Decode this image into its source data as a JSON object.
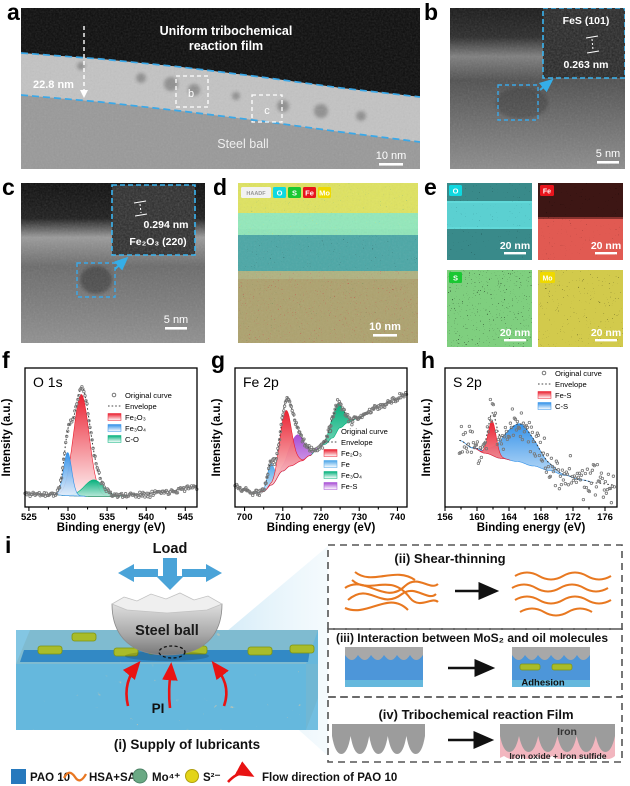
{
  "panels": {
    "a": {
      "label": "a",
      "film_line1": "Uniform tribochemical",
      "film_line2": "reaction film",
      "thickness": "22.8 nm",
      "substrate": "Steel ball",
      "box_b": "b",
      "box_c": "c",
      "scalebar": "10 nm"
    },
    "b": {
      "label": "b",
      "inset_phase": "FeS (101)",
      "inset_spacing": "0.263 nm",
      "scalebar": "5 nm"
    },
    "c": {
      "label": "c",
      "inset_spacing": "0.294 nm",
      "inset_phase": "Fe₂O₃ (220)",
      "scalebar": "5 nm"
    },
    "d": {
      "label": "d",
      "scalebar": "10 nm",
      "chips": [
        {
          "label": "HAADF",
          "color": "#f2f2f2",
          "text": "#999999"
        },
        {
          "label": "O",
          "color": "#0fd8e0",
          "text": "#ffffff"
        },
        {
          "label": "S",
          "color": "#19c832",
          "text": "#ffffff"
        },
        {
          "label": "Fe",
          "color": "#e8141c",
          "text": "#ffffff"
        },
        {
          "label": "Mo",
          "color": "#efd900",
          "text": "#ffffff"
        }
      ]
    },
    "e": {
      "label": "e",
      "maps": [
        {
          "element": "O",
          "chip_color": "#0fd8e0",
          "scalebar": "20 nm"
        },
        {
          "element": "Fe",
          "chip_color": "#e8141c",
          "scalebar": "20 nm"
        },
        {
          "element": "S",
          "chip_color": "#19c832",
          "scalebar": "20 nm"
        },
        {
          "element": "Mo",
          "chip_color": "#efd900",
          "scalebar": "20 nm"
        }
      ]
    },
    "f": {
      "label": "f"
    },
    "g": {
      "label": "g"
    },
    "h": {
      "label": "h"
    },
    "i": {
      "label": "i",
      "schematic": {
        "load": "Load",
        "ball": "Steel ball",
        "pi": "PI",
        "caption_i": "(i) Supply of lubricants",
        "caption_ii": "(ii)  Shear-thinning",
        "caption_iii": "(iii) Interaction between MoS₂ and oil molecules",
        "caption_iv": "(iv) Tribochemical reaction Film",
        "adhesion": "Adhesion",
        "iron": "Iron",
        "iron_compounds": "Iron oxide + Iron sulfide"
      },
      "legend": [
        {
          "symbol": "square",
          "color": "#2779bd",
          "label": "PAO 10"
        },
        {
          "symbol": "wave",
          "color": "#e87722",
          "label": "HSA+SA"
        },
        {
          "symbol": "circle",
          "color": "#6aa984",
          "label": "Mo⁴⁺"
        },
        {
          "symbol": "circle",
          "color": "#e3d418",
          "label": "S²⁻"
        },
        {
          "symbol": "arrow",
          "color": "#e81313",
          "label": "Flow direction of PAO 10"
        }
      ]
    }
  },
  "chart_data": [
    {
      "id": "chart-o1s",
      "panel": "f",
      "type": "area",
      "title": "O 1s",
      "xlabel": "Binding energy (eV)",
      "ylabel": "Intensity (a.u.)",
      "xlim": [
        524.5,
        546.5
      ],
      "xticks": [
        525,
        530,
        535,
        540,
        545
      ],
      "ylim": "arbitrary (a.u.)",
      "baseline": [
        [
          524.5,
          0.08
        ],
        [
          528,
          0.075
        ],
        [
          530,
          0.065
        ],
        [
          533,
          0.06
        ],
        [
          536,
          0.06
        ],
        [
          539,
          0.075
        ],
        [
          542,
          0.095
        ],
        [
          546.5,
          0.135
        ]
      ],
      "peaks": [
        {
          "name": "Fe₂O₃",
          "color": "#ea1c2c",
          "center": 531.7,
          "sigma": 1.0,
          "amp": 0.8
        },
        {
          "name": "C-O",
          "color": "#00b07a",
          "center": 533.3,
          "sigma": 1.2,
          "amp": 0.13
        },
        {
          "name": "Fe₃O₄",
          "color": "#2f8fe8",
          "center": 529.95,
          "sigma": 0.52,
          "amp": 0.34
        }
      ],
      "legend_pos": [
        108,
        50
      ],
      "legend": [
        {
          "label": "Original curve",
          "type": "scatter",
          "color": "#666666"
        },
        {
          "label": "Envelope",
          "type": "envelope",
          "color": "#444444"
        },
        {
          "label": "Fe₂O₃",
          "type": "fill",
          "color": "#ea1c2c"
        },
        {
          "label": "Fe₃O₄",
          "type": "fill",
          "color": "#2f8fe8"
        },
        {
          "label": "C-O",
          "type": "fill",
          "color": "#00b07a"
        }
      ],
      "noise": {
        "amp": 0.018,
        "step": 0.13,
        "seed": 11
      }
    },
    {
      "id": "chart-fe2p",
      "panel": "g",
      "type": "area",
      "title": "Fe 2p",
      "xlabel": "Binding energy (eV)",
      "ylabel": "Intensity (a.u.)",
      "xlim": [
        697.5,
        742.5
      ],
      "xticks": [
        700,
        710,
        720,
        730,
        740
      ],
      "ylim": "arbitrary (a.u.)",
      "baseline": [
        [
          697.5,
          0.14
        ],
        [
          700,
          0.11
        ],
        [
          702.5,
          0.085
        ],
        [
          705,
          0.1
        ],
        [
          707,
          0.15
        ],
        [
          710,
          0.26
        ],
        [
          712,
          0.3
        ],
        [
          715,
          0.34
        ],
        [
          717,
          0.38
        ],
        [
          719,
          0.43
        ],
        [
          721,
          0.47
        ],
        [
          723,
          0.52
        ],
        [
          725,
          0.6
        ],
        [
          727,
          0.64
        ],
        [
          730,
          0.68
        ],
        [
          733,
          0.73
        ],
        [
          736,
          0.78
        ],
        [
          739,
          0.82
        ],
        [
          742.5,
          0.87
        ]
      ],
      "peaks": [
        {
          "name": "Fe-S",
          "color": "#a64ad4",
          "center": 713.6,
          "sigma": 2.0,
          "amp": 0.22
        },
        {
          "name": "Fe₃O₄",
          "color": "#00b07a",
          "center": 724.2,
          "sigma": 1.6,
          "amp": 0.21
        },
        {
          "name": "Fe",
          "color": "#47a3e8",
          "center": 706.9,
          "sigma": 0.9,
          "amp": 0.17
        },
        {
          "name": "Fe₂O₃",
          "color": "#ea1c2c",
          "center": 710.8,
          "sigma": 1.5,
          "amp": 0.46
        }
      ],
      "legend_pos": [
        114,
        86
      ],
      "legend": [
        {
          "label": "Original curve",
          "type": "scatter",
          "color": "#666666"
        },
        {
          "label": "Envelope",
          "type": "envelope",
          "color": "#444444"
        },
        {
          "label": "Fe₂O₃",
          "type": "fill",
          "color": "#ea1c2c"
        },
        {
          "label": "Fe",
          "type": "fill",
          "color": "#47a3e8"
        },
        {
          "label": "Fe₃O₄",
          "type": "fill",
          "color": "#00b07a"
        },
        {
          "label": "Fe-S",
          "type": "fill",
          "color": "#a64ad4"
        }
      ],
      "noise": {
        "amp": 0.022,
        "step": 0.22,
        "seed": 5
      }
    },
    {
      "id": "chart-s2p",
      "panel": "h",
      "type": "area",
      "title": "S 2p",
      "xlabel": "Binding energy (eV)",
      "ylabel": "Intensity (a.u.)",
      "xlim": [
        156,
        177.5
      ],
      "xticks": [
        156,
        160,
        164,
        168,
        172,
        176
      ],
      "ylim": "arbitrary (a.u.)",
      "baseline": [
        [
          157.8,
          0.5
        ],
        [
          159.5,
          0.44
        ],
        [
          161,
          0.4
        ],
        [
          163,
          0.36
        ],
        [
          165,
          0.335
        ],
        [
          167,
          0.3
        ],
        [
          169,
          0.265
        ],
        [
          171,
          0.225
        ],
        [
          173,
          0.19
        ],
        [
          175,
          0.165
        ],
        [
          177.2,
          0.15
        ]
      ],
      "peaks": [
        {
          "name": "C-S",
          "color": "#2f8fe8",
          "center": 165.4,
          "sigma": 2.0,
          "amp": 0.3
        },
        {
          "name": "Fe-S",
          "color": "#ea1c2c",
          "center": 161.9,
          "sigma": 0.5,
          "amp": 0.27
        }
      ],
      "legend_pos": [
        118,
        28
      ],
      "legend": [
        {
          "label": "Original curve",
          "type": "scatter",
          "color": "#666666"
        },
        {
          "label": "Envelope",
          "type": "envelope",
          "color": "#444444"
        },
        {
          "label": "Fe-S",
          "type": "fill",
          "color": "#ea1c2c"
        },
        {
          "label": "C-S",
          "type": "fill",
          "color": "#2f8fe8"
        }
      ],
      "noise": {
        "amp": 0.115,
        "step": 0.125,
        "seed": 23
      }
    }
  ]
}
